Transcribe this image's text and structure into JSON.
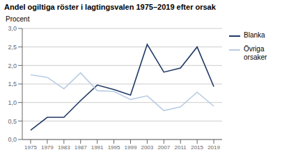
{
  "chart_data": {
    "type": "line",
    "title": "Andel ogiltiga röster i lagtingsvalen 1975–2019 efter orsak",
    "ylabel": "Procent",
    "x": [
      1975,
      1979,
      1983,
      1987,
      1991,
      1995,
      1999,
      2003,
      2007,
      2011,
      2015,
      2019
    ],
    "series": [
      {
        "name": "Blanka",
        "color": "#1f3864",
        "values": [
          0.25,
          0.6,
          0.6,
          1.05,
          1.47,
          1.35,
          1.2,
          2.57,
          1.82,
          1.93,
          2.5,
          1.43
        ]
      },
      {
        "name": "Övriga\norsaker",
        "color": "#b8cce4",
        "values": [
          1.75,
          1.68,
          1.37,
          1.8,
          1.32,
          1.3,
          1.08,
          1.18,
          0.78,
          0.88,
          1.28,
          0.9
        ]
      }
    ],
    "xlim": [
      1973,
      2021
    ],
    "xticks": [
      1975,
      1979,
      1983,
      1987,
      1991,
      1995,
      1999,
      2003,
      2007,
      2011,
      2015,
      2019
    ],
    "ylim": [
      0,
      3.0
    ],
    "yticks": [
      {
        "value": 0.0,
        "label": "0,0"
      },
      {
        "value": 0.5,
        "label": "0,5"
      },
      {
        "value": 1.0,
        "label": "1,0"
      },
      {
        "value": 1.5,
        "label": "1,5"
      },
      {
        "value": 2.0,
        "label": "2,0"
      },
      {
        "value": 2.5,
        "label": "2,5"
      },
      {
        "value": 3.0,
        "label": "3,0"
      }
    ],
    "grid": true,
    "legend": "right"
  }
}
